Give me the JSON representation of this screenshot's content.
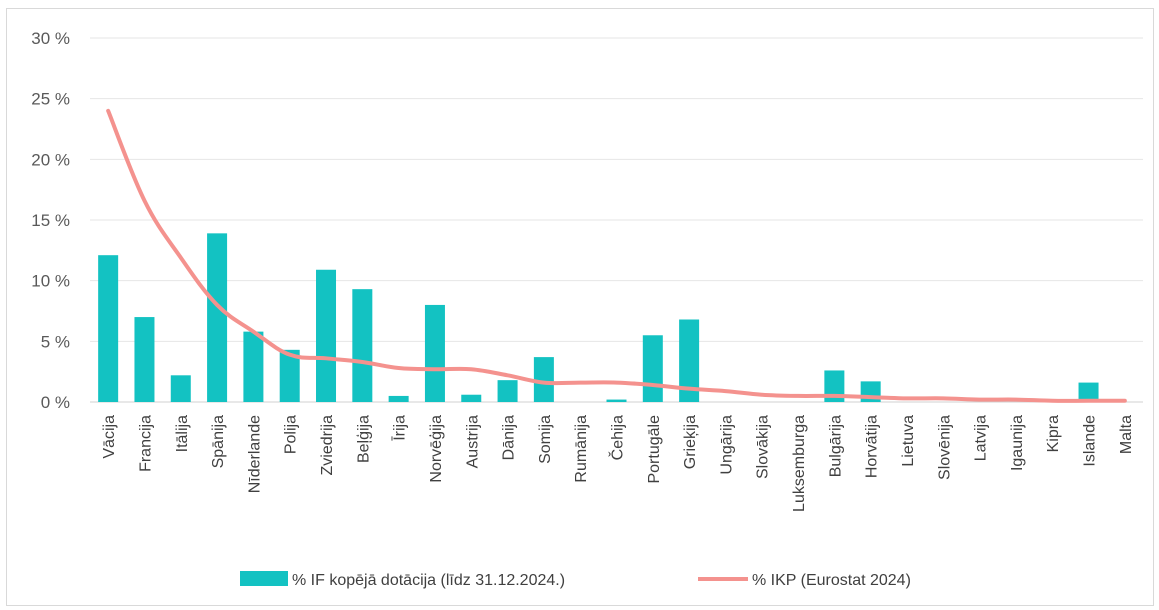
{
  "chart_data": {
    "type": "bar",
    "title": "",
    "xlabel": "",
    "ylabel": "",
    "ylim": [
      0,
      30
    ],
    "yticks": [
      "0 %",
      "5 %",
      "10 %",
      "15 %",
      "20 %",
      "25 %",
      "30 %"
    ],
    "grid": true,
    "legend_position": "bottom",
    "categories": [
      "Vācija",
      "Francija",
      "Itālija",
      "Spānija",
      "Nīderlande",
      "Polija",
      "Zviedrija",
      "Beļģija",
      "Īrija",
      "Norvēģija",
      "Austrija",
      "Dānija",
      "Somija",
      "Rumānija",
      "Čehija",
      "Portugāle",
      "Grieķija",
      "Ungārija",
      "Slovākija",
      "Luksemburga",
      "Bulgārija",
      "Horvātija",
      "Lietuva",
      "Slovēnija",
      "Latvija",
      "Igaunija",
      "Kipra",
      "Islande",
      "Malta"
    ],
    "series": [
      {
        "name": "% IF kopējā dotācija (līdz 31.12.2024.)",
        "type": "bar",
        "color": "#13C2C2",
        "values": [
          12.1,
          7.0,
          2.2,
          13.9,
          5.8,
          4.3,
          10.9,
          9.3,
          0.5,
          8.0,
          0.6,
          1.8,
          3.7,
          0.0,
          0.2,
          5.5,
          6.8,
          0.0,
          0.0,
          0.0,
          2.6,
          1.7,
          0.0,
          0.0,
          0.0,
          0.0,
          0.0,
          1.6,
          0.0
        ]
      },
      {
        "name": "% IKP (Eurostat 2024)",
        "type": "line",
        "color": "#F4928E",
        "values": [
          24.0,
          16.6,
          11.9,
          8.0,
          5.8,
          3.9,
          3.6,
          3.3,
          2.8,
          2.7,
          2.7,
          2.2,
          1.6,
          1.6,
          1.6,
          1.4,
          1.1,
          0.9,
          0.6,
          0.5,
          0.5,
          0.4,
          0.3,
          0.3,
          0.2,
          0.2,
          0.1,
          0.1,
          0.1
        ]
      }
    ]
  }
}
